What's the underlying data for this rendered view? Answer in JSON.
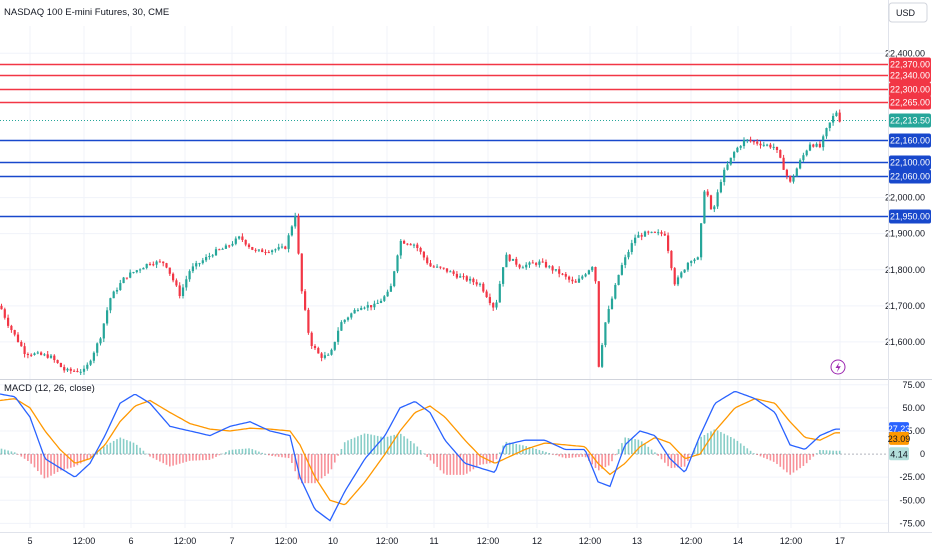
{
  "header": {
    "title": "NASDAQ 100 E-mini Futures, 30, CME",
    "currency": "USD"
  },
  "chart_data": [
    {
      "type": "candlestick",
      "name": "price",
      "y_ticks": [
        22400,
        22000,
        21900,
        21800,
        21700,
        21600
      ],
      "y_tick_labels": [
        "22,400.00",
        "22,000.00",
        "21,900.00",
        "21,800.00",
        "21,700.00",
        "21,600.00"
      ],
      "ylim": [
        21500,
        22470
      ],
      "last_price": 22213.5,
      "last_price_label": "22,213.50",
      "horizontal_levels": [
        {
          "value": 22370,
          "label": "22,370.00",
          "color": "#f23645"
        },
        {
          "value": 22340,
          "label": "22,340.00",
          "color": "#f23645"
        },
        {
          "value": 22300,
          "label": "22,300.00",
          "color": "#f23645"
        },
        {
          "value": 22265,
          "label": "22,265.00",
          "color": "#f23645"
        },
        {
          "value": 22160,
          "label": "22,160.00",
          "color": "#1848cc"
        },
        {
          "value": 22100,
          "label": "22,100.00",
          "color": "#1848cc"
        },
        {
          "value": 22060,
          "label": "22,060.00",
          "color": "#1848cc"
        },
        {
          "value": 21950,
          "label": "21,950.00",
          "color": "#1848cc"
        }
      ],
      "x_tick_labels": [
        "5",
        "12:00",
        "6",
        "12:00",
        "7",
        "12:00",
        "10",
        "12:00",
        "11",
        "12:00",
        "12",
        "12:00",
        "13",
        "12:00",
        "14",
        "12:00",
        "17"
      ],
      "path_anchors": [
        [
          0,
          21700
        ],
        [
          8,
          21650
        ],
        [
          25,
          21570
        ],
        [
          50,
          21560
        ],
        [
          65,
          21520
        ],
        [
          85,
          21520
        ],
        [
          100,
          21610
        ],
        [
          110,
          21720
        ],
        [
          125,
          21780
        ],
        [
          150,
          21820
        ],
        [
          165,
          21820
        ],
        [
          180,
          21730
        ],
        [
          190,
          21800
        ],
        [
          215,
          21850
        ],
        [
          225,
          21860
        ],
        [
          240,
          21890
        ],
        [
          255,
          21850
        ],
        [
          285,
          21860
        ],
        [
          296,
          21960
        ],
        [
          300,
          21770
        ],
        [
          310,
          21600
        ],
        [
          320,
          21560
        ],
        [
          330,
          21560
        ],
        [
          340,
          21650
        ],
        [
          360,
          21700
        ],
        [
          375,
          21700
        ],
        [
          390,
          21740
        ],
        [
          400,
          21880
        ],
        [
          415,
          21870
        ],
        [
          430,
          21810
        ],
        [
          445,
          21800
        ],
        [
          460,
          21780
        ],
        [
          480,
          21760
        ],
        [
          495,
          21690
        ],
        [
          505,
          21840
        ],
        [
          520,
          21810
        ],
        [
          540,
          21820
        ],
        [
          560,
          21790
        ],
        [
          575,
          21760
        ],
        [
          585,
          21790
        ],
        [
          595,
          21820
        ],
        [
          598,
          21520
        ],
        [
          605,
          21650
        ],
        [
          620,
          21800
        ],
        [
          635,
          21890
        ],
        [
          645,
          21900
        ],
        [
          665,
          21900
        ],
        [
          675,
          21760
        ],
        [
          690,
          21830
        ],
        [
          698,
          21830
        ],
        [
          705,
          22040
        ],
        [
          712,
          21950
        ],
        [
          722,
          22060
        ],
        [
          735,
          22130
        ],
        [
          745,
          22160
        ],
        [
          760,
          22150
        ],
        [
          775,
          22140
        ],
        [
          790,
          22040
        ],
        [
          800,
          22100
        ],
        [
          810,
          22150
        ],
        [
          820,
          22140
        ],
        [
          826,
          22185
        ],
        [
          836,
          22240
        ],
        [
          840,
          22213
        ]
      ]
    },
    {
      "type": "line+histogram",
      "name": "MACD (12, 26, close)",
      "title": "MACD (12, 26, close)",
      "y_ticks": [
        75,
        50,
        25,
        0,
        -25,
        -50,
        -75
      ],
      "y_tick_labels": [
        "75.00",
        "50.00",
        "25.00",
        "0",
        "-25.00",
        "-50.00",
        "-75.00"
      ],
      "ylim": [
        -80,
        78
      ],
      "series": [
        {
          "name": "MACD",
          "color": "#2962ff",
          "last_label": "27.23",
          "anchors": [
            [
              0,
              65
            ],
            [
              15,
              62
            ],
            [
              30,
              40
            ],
            [
              45,
              -5
            ],
            [
              60,
              -15
            ],
            [
              75,
              -25
            ],
            [
              90,
              -10
            ],
            [
              105,
              20
            ],
            [
              120,
              55
            ],
            [
              135,
              65
            ],
            [
              150,
              55
            ],
            [
              170,
              30
            ],
            [
              190,
              25
            ],
            [
              210,
              20
            ],
            [
              230,
              30
            ],
            [
              250,
              35
            ],
            [
              270,
              25
            ],
            [
              290,
              20
            ],
            [
              300,
              -25
            ],
            [
              315,
              -60
            ],
            [
              330,
              -72
            ],
            [
              345,
              -40
            ],
            [
              365,
              -5
            ],
            [
              385,
              20
            ],
            [
              400,
              50
            ],
            [
              415,
              57
            ],
            [
              430,
              45
            ],
            [
              445,
              15
            ],
            [
              465,
              -10
            ],
            [
              480,
              -15
            ],
            [
              495,
              -20
            ],
            [
              505,
              10
            ],
            [
              525,
              15
            ],
            [
              545,
              15
            ],
            [
              565,
              5
            ],
            [
              585,
              5
            ],
            [
              598,
              -30
            ],
            [
              610,
              -35
            ],
            [
              625,
              10
            ],
            [
              640,
              25
            ],
            [
              655,
              20
            ],
            [
              670,
              -5
            ],
            [
              685,
              -20
            ],
            [
              700,
              20
            ],
            [
              715,
              55
            ],
            [
              735,
              68
            ],
            [
              755,
              60
            ],
            [
              775,
              45
            ],
            [
              790,
              10
            ],
            [
              805,
              5
            ],
            [
              820,
              20
            ],
            [
              835,
              27
            ]
          ]
        },
        {
          "name": "Signal",
          "color": "#ff9800",
          "last_label": "23.09",
          "anchors": [
            [
              0,
              58
            ],
            [
              15,
              60
            ],
            [
              30,
              50
            ],
            [
              45,
              25
            ],
            [
              60,
              5
            ],
            [
              75,
              -10
            ],
            [
              90,
              -5
            ],
            [
              105,
              10
            ],
            [
              120,
              35
            ],
            [
              135,
              52
            ],
            [
              150,
              58
            ],
            [
              170,
              45
            ],
            [
              190,
              33
            ],
            [
              210,
              27
            ],
            [
              230,
              25
            ],
            [
              250,
              28
            ],
            [
              270,
              27
            ],
            [
              290,
              25
            ],
            [
              300,
              10
            ],
            [
              315,
              -25
            ],
            [
              330,
              -50
            ],
            [
              345,
              -55
            ],
            [
              365,
              -30
            ],
            [
              385,
              0
            ],
            [
              400,
              25
            ],
            [
              415,
              45
            ],
            [
              430,
              52
            ],
            [
              445,
              40
            ],
            [
              465,
              15
            ],
            [
              480,
              -2
            ],
            [
              495,
              -10
            ],
            [
              505,
              -5
            ],
            [
              525,
              5
            ],
            [
              545,
              12
            ],
            [
              565,
              10
            ],
            [
              585,
              8
            ],
            [
              598,
              -10
            ],
            [
              610,
              -22
            ],
            [
              625,
              -10
            ],
            [
              640,
              8
            ],
            [
              655,
              18
            ],
            [
              670,
              12
            ],
            [
              685,
              -5
            ],
            [
              700,
              0
            ],
            [
              715,
              25
            ],
            [
              735,
              50
            ],
            [
              755,
              60
            ],
            [
              775,
              55
            ],
            [
              790,
              35
            ],
            [
              805,
              18
            ],
            [
              820,
              15
            ],
            [
              835,
              23
            ]
          ]
        },
        {
          "name": "Histogram",
          "last_label": "4.14",
          "color_up": "#26a69a",
          "color_down": "#f23645"
        }
      ]
    }
  ]
}
